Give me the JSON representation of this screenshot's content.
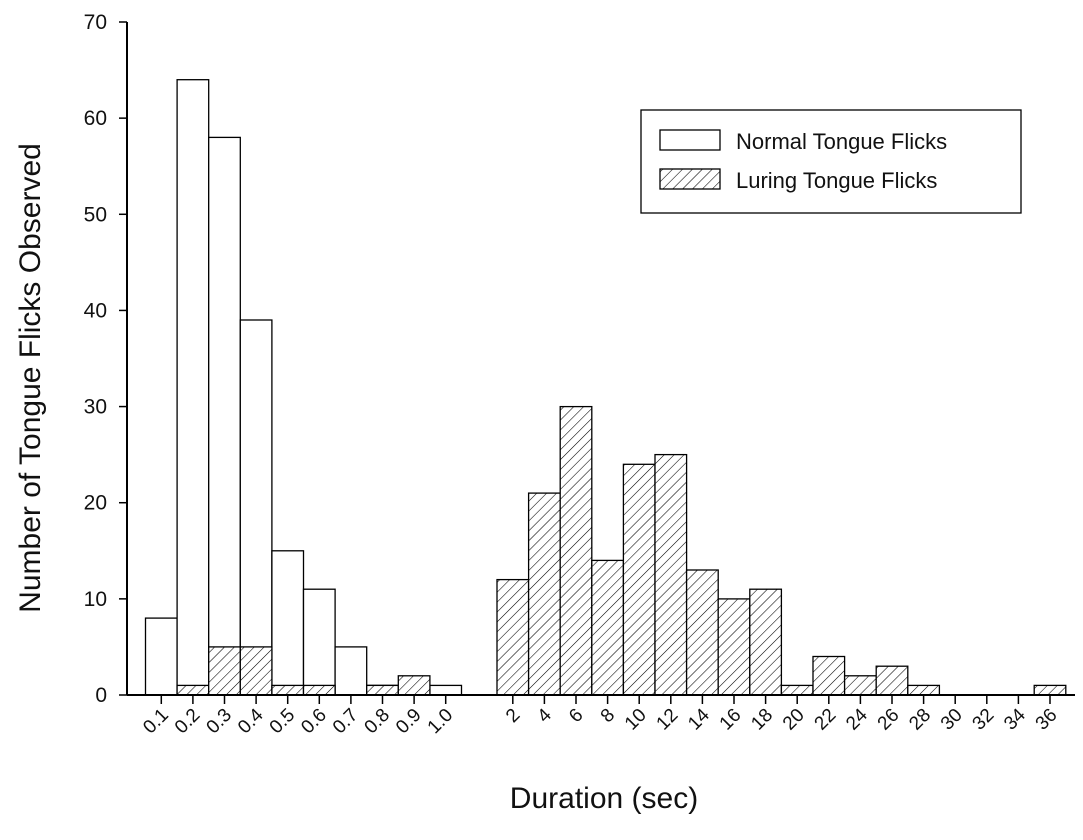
{
  "chart_data": {
    "type": "bar",
    "xlabel": "Duration (sec)",
    "ylabel": "Number of Tongue Flicks Observed",
    "ylim": [
      0,
      70
    ],
    "yticks": [
      "0",
      "10",
      "20",
      "30",
      "40",
      "50",
      "60",
      "70"
    ],
    "categories": [
      "0.1",
      "0.2",
      "0.3",
      "0.4",
      "0.5",
      "0.6",
      "0.7",
      "0.8",
      "0.9",
      "1.0",
      "2",
      "4",
      "6",
      "8",
      "10",
      "12",
      "14",
      "16",
      "18",
      "20",
      "22",
      "24",
      "26",
      "28",
      "30",
      "32",
      "34",
      "36"
    ],
    "series": [
      {
        "name": "Normal Tongue Flicks",
        "fill": "open",
        "values": [
          8,
          64,
          58,
          39,
          15,
          11,
          5,
          1,
          0,
          1,
          0,
          0,
          0,
          0,
          0,
          0,
          0,
          0,
          0,
          0,
          0,
          0,
          0,
          0,
          0,
          0,
          0,
          0
        ]
      },
      {
        "name": "Luring Tongue Flicks",
        "fill": "hatched",
        "values": [
          0,
          1,
          5,
          5,
          1,
          1,
          0,
          1,
          2,
          0,
          12,
          21,
          30,
          14,
          24,
          25,
          13,
          10,
          11,
          1,
          4,
          2,
          3,
          1,
          0,
          0,
          0,
          1
        ]
      }
    ],
    "legend": "top-right",
    "grid": false
  }
}
